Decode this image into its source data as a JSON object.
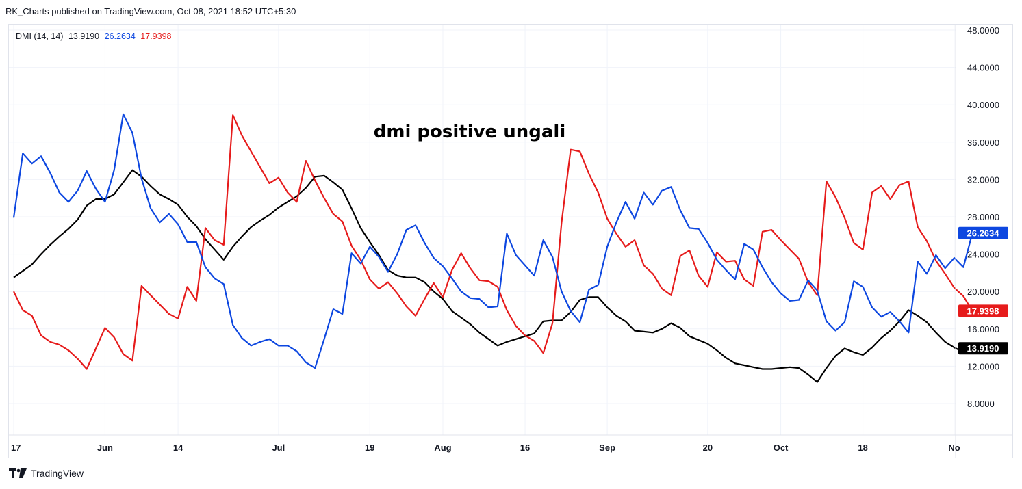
{
  "header": {
    "text": "RK_Charts published on TradingView.com, Oct 08, 2021 18:52 UTC+5:30"
  },
  "legend": {
    "name": "DMI (14, 14)",
    "adx": "13.9190",
    "plus_di": "26.2634",
    "minus_di": "17.9398"
  },
  "annotation": "dmi positive ungali",
  "footer": {
    "brand": "TradingView",
    "logo_icon": "tradingview-logo-icon"
  },
  "colors": {
    "adx": "#000000",
    "plus_di": "#0d47e0",
    "minus_di": "#e61b1b",
    "grid": "#f0f3fa",
    "border": "#e0e3eb"
  },
  "chart_data": {
    "type": "line",
    "ylim": [
      4,
      48
    ],
    "y_ticks": [
      "48.0000",
      "44.0000",
      "40.0000",
      "36.0000",
      "32.0000",
      "28.0000",
      "24.0000",
      "20.0000",
      "16.0000",
      "12.0000",
      "8.0000"
    ],
    "x_ticks": [
      "17",
      "Jun",
      "14",
      "Jul",
      "19",
      "Aug",
      "16",
      "Sep",
      "20",
      "Oct",
      "18",
      "No"
    ],
    "x_tick_index": [
      0,
      10,
      18,
      29,
      39,
      47,
      56,
      65,
      76,
      84,
      93,
      103
    ],
    "last_values": {
      "plus_di": "26.2634",
      "minus_di": "17.9398",
      "adx": "13.9190"
    },
    "series": [
      {
        "key": "plus_di",
        "values": [
          27.9,
          34.8,
          33.7,
          34.5,
          32.7,
          30.6,
          29.6,
          30.8,
          32.9,
          31.0,
          29.6,
          33.0,
          39.0,
          37.0,
          32.1,
          28.9,
          27.4,
          28.3,
          27.2,
          25.3,
          25.3,
          22.6,
          21.4,
          20.8,
          16.4,
          15.0,
          14.2,
          14.6,
          14.9,
          14.2,
          14.2,
          13.6,
          12.4,
          11.8,
          14.9,
          18.1,
          17.6,
          24.1,
          23.0,
          24.8,
          23.7,
          22.1,
          24.0,
          26.6,
          27.1,
          25.2,
          23.6,
          22.7,
          21.4,
          20.0,
          19.3,
          19.2,
          18.3,
          18.4,
          26.2,
          23.9,
          22.8,
          21.7,
          25.5,
          23.7,
          20.0,
          17.9,
          16.7,
          20.2,
          20.7,
          24.8,
          27.4,
          29.6,
          27.8,
          30.6,
          29.3,
          30.8,
          31.2,
          28.7,
          26.8,
          26.7,
          25.2,
          23.4,
          22.3,
          21.3,
          25.1,
          24.5,
          22.6,
          21.0,
          19.8,
          19.0,
          19.1,
          21.2,
          20.1,
          16.8,
          15.8,
          16.7,
          21.1,
          20.5,
          18.3,
          17.3,
          17.8,
          16.8,
          15.6,
          23.2,
          21.9,
          23.9,
          22.5,
          23.6,
          22.6,
          26.3
        ]
      },
      {
        "key": "minus_di",
        "values": [
          20.0,
          18.0,
          17.4,
          15.3,
          14.6,
          14.3,
          13.7,
          12.8,
          11.7,
          13.9,
          16.1,
          15.1,
          13.3,
          12.6,
          20.6,
          19.6,
          18.6,
          17.6,
          17.1,
          20.5,
          19.0,
          26.8,
          25.5,
          25.0,
          38.9,
          36.7,
          35.0,
          33.3,
          31.6,
          32.2,
          30.6,
          29.6,
          34.0,
          31.9,
          30.0,
          28.3,
          27.5,
          24.9,
          23.4,
          21.3,
          20.3,
          21.0,
          19.8,
          18.4,
          17.4,
          19.2,
          20.9,
          19.4,
          22.3,
          24.1,
          22.5,
          21.2,
          21.1,
          20.5,
          18.0,
          16.3,
          15.3,
          14.7,
          13.4,
          16.6,
          27.4,
          35.2,
          35.0,
          32.6,
          30.6,
          27.8,
          26.2,
          24.8,
          25.5,
          22.8,
          21.9,
          20.3,
          19.6,
          23.8,
          24.4,
          21.7,
          20.5,
          24.2,
          23.2,
          23.3,
          21.3,
          20.6,
          26.4,
          26.6,
          25.5,
          24.5,
          23.5,
          21.0,
          19.6,
          31.8,
          30.1,
          27.9,
          25.2,
          24.5,
          30.6,
          31.3,
          29.9,
          31.4,
          31.8,
          26.9,
          25.4,
          23.3,
          21.9,
          20.4,
          19.5,
          17.9
        ]
      },
      {
        "key": "adx",
        "values": [
          21.5,
          22.2,
          22.9,
          24.0,
          25.0,
          25.9,
          26.7,
          27.7,
          29.2,
          29.9,
          29.9,
          30.4,
          31.7,
          33.0,
          32.3,
          31.3,
          30.4,
          29.9,
          29.3,
          28.0,
          27.0,
          25.6,
          24.5,
          23.4,
          24.8,
          25.9,
          26.9,
          27.6,
          28.2,
          29.0,
          29.6,
          30.2,
          31.1,
          32.3,
          32.4,
          31.7,
          30.9,
          28.9,
          26.8,
          25.3,
          23.9,
          22.3,
          21.7,
          21.5,
          21.5,
          21.0,
          20.0,
          19.2,
          17.9,
          17.2,
          16.5,
          15.6,
          14.9,
          14.2,
          14.6,
          14.9,
          15.2,
          15.5,
          16.8,
          16.9,
          16.9,
          17.8,
          19.1,
          19.4,
          19.4,
          18.3,
          17.4,
          16.8,
          15.8,
          15.7,
          15.6,
          16.0,
          16.6,
          16.1,
          15.2,
          14.8,
          14.4,
          13.7,
          12.9,
          12.3,
          12.1,
          11.9,
          11.7,
          11.7,
          11.8,
          11.9,
          11.8,
          11.1,
          10.3,
          11.8,
          13.1,
          13.9,
          13.5,
          13.2,
          14.0,
          15.0,
          15.8,
          16.8,
          18.0,
          17.4,
          16.7,
          15.6,
          14.6,
          14.0,
          13.5,
          13.9
        ]
      }
    ]
  }
}
